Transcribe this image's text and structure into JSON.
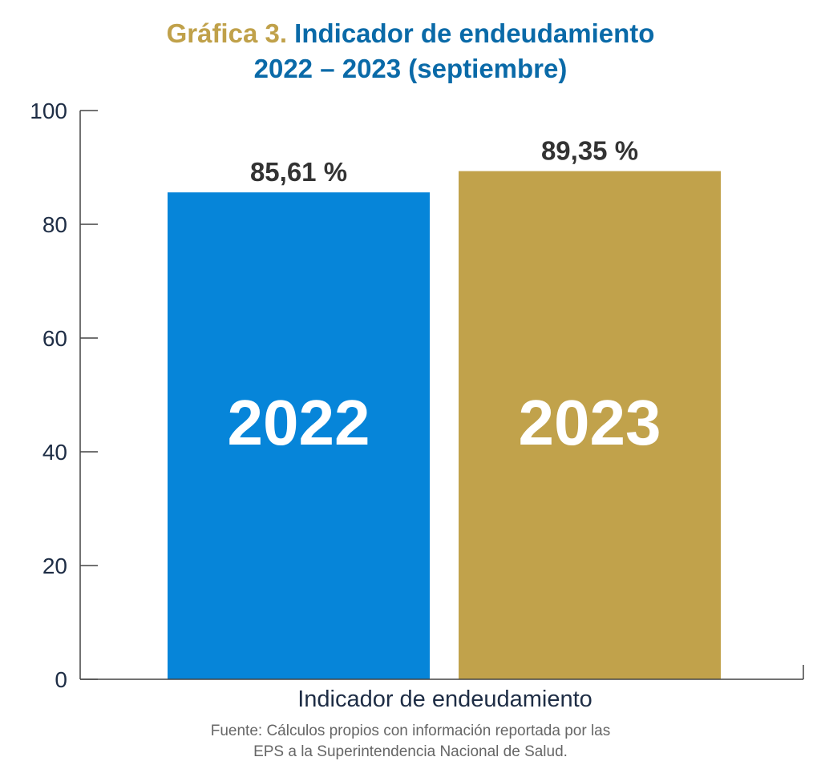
{
  "chart_data": {
    "type": "bar",
    "title_prefix": "Gráfica 3.",
    "title": "Indicador de endeudamiento",
    "subtitle": "2022 – 2023 (septiembre)",
    "categories": [
      "2022",
      "2023"
    ],
    "values": [
      85.61,
      89.35
    ],
    "data_labels": [
      "85,61 %",
      "89,35 %"
    ],
    "colors": [
      "#0685d9",
      "#c1a24b"
    ],
    "xlabel": "Indicador de endeudamiento",
    "ylabel": "",
    "ylim": [
      0,
      100
    ],
    "yticks": [
      0,
      20,
      40,
      60,
      80,
      100
    ],
    "grid": false,
    "source": [
      "Fuente: Cálculos propios con información reportada por las",
      "EPS a la Superintendencia Nacional de Salud."
    ]
  }
}
